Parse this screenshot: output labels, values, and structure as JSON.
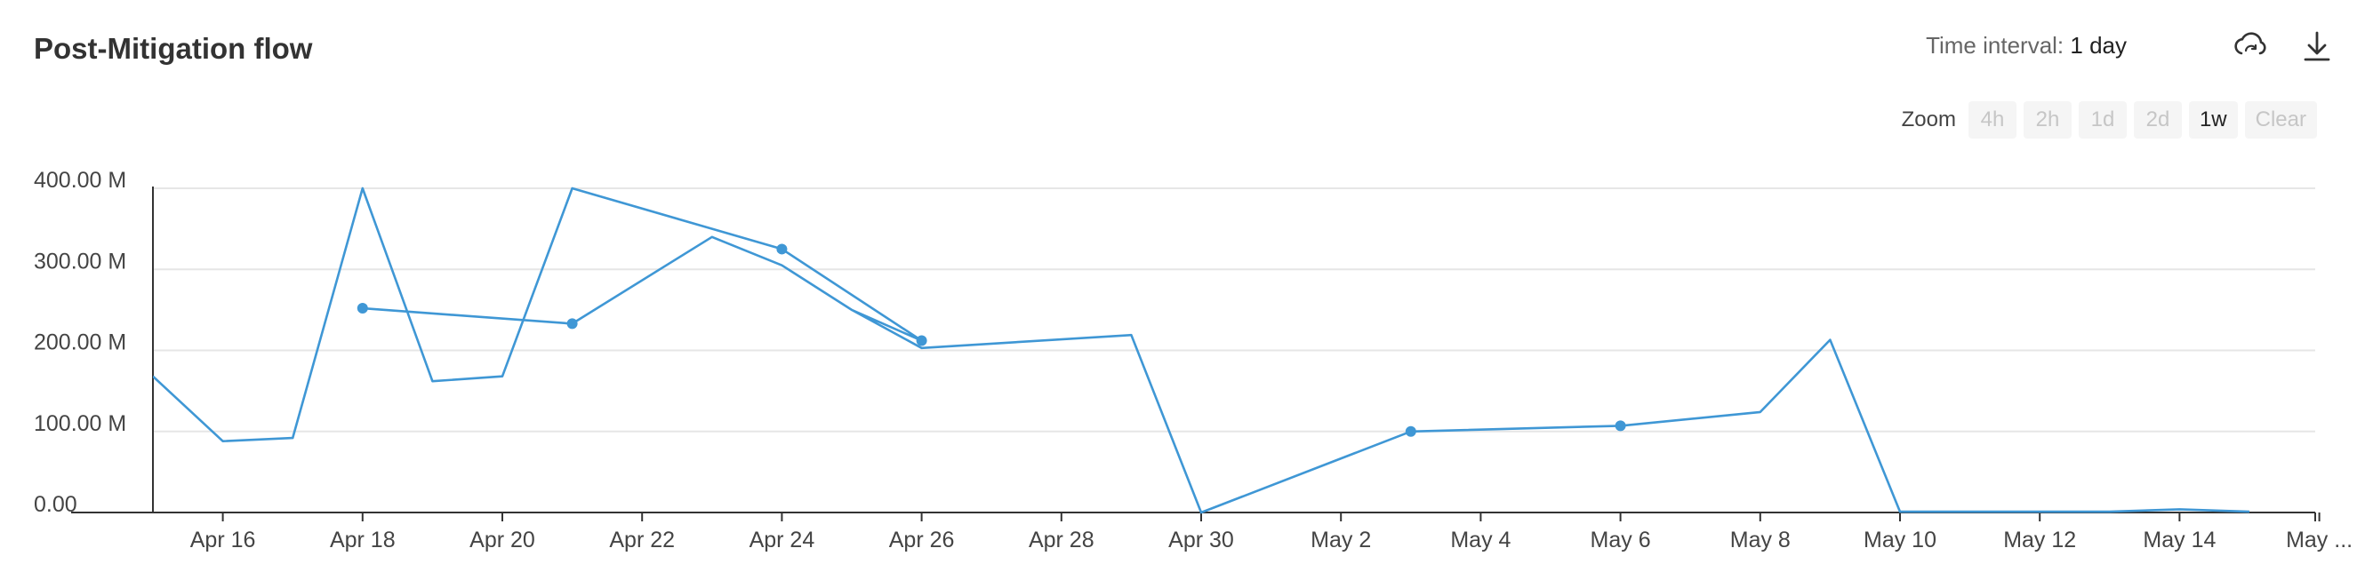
{
  "header": {
    "title": "Post-Mitigation flow",
    "interval_label": "Time interval:",
    "interval_value": "1 day"
  },
  "icons": {
    "cloud": "cloud-refresh-icon",
    "download": "download-icon"
  },
  "zoom": {
    "label": "Zoom",
    "buttons": [
      {
        "label": "4h",
        "active": false
      },
      {
        "label": "2h",
        "active": false
      },
      {
        "label": "1d",
        "active": false
      },
      {
        "label": "2d",
        "active": false
      },
      {
        "label": "1w",
        "active": true
      },
      {
        "label": "Clear",
        "active": false
      }
    ]
  },
  "colors": {
    "series": "#3f97d5",
    "grid": "#e6e6e6",
    "axis": "#333333"
  },
  "chart_data": {
    "type": "line",
    "title": "",
    "xlabel": "",
    "ylabel": "",
    "ylim": [
      0,
      400
    ],
    "y_unit": "M",
    "y_ticks": [
      "0.00",
      "100.00 M",
      "200.00 M",
      "300.00 M",
      "400.00 M"
    ],
    "y_tick_values": [
      0,
      100,
      200,
      300,
      400
    ],
    "x_ticks": [
      "Apr 16",
      "Apr 18",
      "Apr 20",
      "Apr 22",
      "Apr 24",
      "Apr 26",
      "Apr 28",
      "Apr 30",
      "May 2",
      "May 4",
      "May 6",
      "May 8",
      "May 10",
      "May 12",
      "May 14",
      "May ..."
    ],
    "series": [
      {
        "points": [
          {
            "x": "Apr 15",
            "y": 168
          },
          {
            "x": "Apr 16",
            "y": 88
          },
          {
            "x": "Apr 17",
            "y": 92
          },
          {
            "x": "Apr 18",
            "y": 400
          },
          {
            "x": "Apr 19",
            "y": 162
          },
          {
            "x": "Apr 20",
            "y": 168
          },
          {
            "x": "Apr 21",
            "y": 400
          },
          {
            "x": "Apr 24",
            "y": 325,
            "marker": true
          },
          {
            "x": "Apr 26",
            "y": 212,
            "marker": true
          },
          {
            "x": "Apr 25",
            "y": 250
          },
          {
            "x": "Apr 24",
            "y": 305
          },
          {
            "x": "Apr 23",
            "y": 340
          },
          {
            "x": "Apr 21",
            "y": 233,
            "marker": true
          },
          {
            "x": "Apr 18",
            "y": 252,
            "marker": true
          },
          {
            "x": "Apr 18",
            "y": 252
          },
          {
            "x": "Apr 21",
            "y": 233
          },
          {
            "x": "Apr 23",
            "y": 340
          },
          {
            "x": "Apr 24",
            "y": 305
          },
          {
            "x": "Apr 25",
            "y": 250
          },
          {
            "x": "Apr 26",
            "y": 203
          },
          {
            "x": "Apr 29",
            "y": 219
          },
          {
            "x": "Apr 30",
            "y": 0
          },
          {
            "x": "May 3",
            "y": 100,
            "marker": true
          },
          {
            "x": "May 6",
            "y": 107,
            "marker": true
          },
          {
            "x": "May 8",
            "y": 124
          },
          {
            "x": "May 9",
            "y": 213
          },
          {
            "x": "May 10",
            "y": 1
          },
          {
            "x": "May 12",
            "y": 1
          },
          {
            "x": "May 13",
            "y": 1
          },
          {
            "x": "May 14",
            "y": 4
          },
          {
            "x": "May 15",
            "y": 1
          }
        ]
      }
    ]
  }
}
